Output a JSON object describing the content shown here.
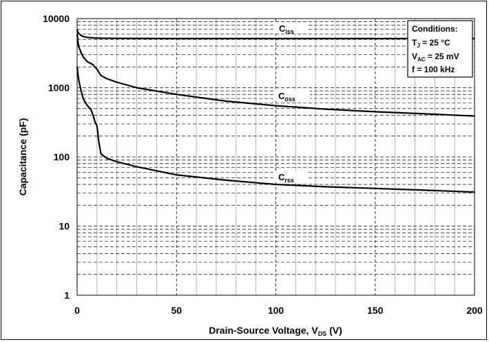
{
  "chart_data": {
    "type": "line",
    "xlabel": "Drain-Source Voltage, V",
    "xlabel_sub": "DS",
    "xlabel_unit": " (V)",
    "ylabel": "Capacitance (pF)",
    "xlim": [
      0,
      200
    ],
    "ylim": [
      1,
      10000
    ],
    "yscale": "log",
    "grid": true,
    "x_ticks": [
      "0",
      "50",
      "100",
      "150",
      "200"
    ],
    "y_ticks": [
      "1",
      "10",
      "100",
      "1000",
      "10000"
    ],
    "series": [
      {
        "name": "Ciss",
        "name_main": "C",
        "name_sub": "iss",
        "x": [
          0,
          0.5,
          1,
          2,
          3,
          5,
          8,
          12,
          20,
          50,
          100,
          150,
          200
        ],
        "y": [
          7000,
          6300,
          6000,
          5700,
          5500,
          5350,
          5250,
          5200,
          5180,
          5150,
          5150,
          5150,
          5150
        ]
      },
      {
        "name": "Coss",
        "name_main": "C",
        "name_sub": "oss",
        "x": [
          0,
          0.5,
          1,
          2,
          3,
          5,
          8,
          10,
          12,
          15,
          20,
          30,
          50,
          75,
          100,
          125,
          150,
          175,
          200
        ],
        "y": [
          6000,
          4400,
          3800,
          3200,
          2800,
          2400,
          2150,
          1850,
          1500,
          1350,
          1200,
          1000,
          800,
          640,
          550,
          490,
          450,
          420,
          390
        ]
      },
      {
        "name": "Crss",
        "name_main": "C",
        "name_sub": "rss",
        "x": [
          0,
          0.5,
          1,
          2,
          3,
          5,
          7,
          8,
          9,
          10,
          11,
          12,
          15,
          20,
          30,
          50,
          75,
          100,
          125,
          150,
          175,
          200
        ],
        "y": [
          2000,
          1500,
          1200,
          900,
          700,
          560,
          480,
          400,
          320,
          280,
          160,
          110,
          95,
          85,
          72,
          55,
          46,
          40,
          37,
          35,
          33,
          31
        ]
      }
    ],
    "conditions": {
      "title": "Conditions:",
      "line1_main": "T",
      "line1_sub": "J",
      "line1_rest": " = 25 °C",
      "line2_main": "V",
      "line2_sub": "AC",
      "line2_rest": " = 25 mV",
      "line3": "f = 100 kHz"
    }
  }
}
